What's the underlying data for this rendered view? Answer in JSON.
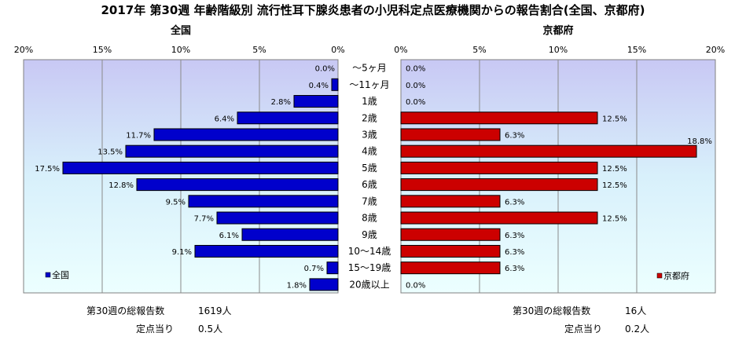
{
  "title": "2017年 第30週 年齢階級別 流行性耳下腺炎患者の小児科定点医療機関からの報告割合(全国、京都府)",
  "colors": {
    "national": "#0000cc",
    "kyoto": "#cc0000",
    "bar_stroke": "#000000"
  },
  "chart_data": [
    {
      "type": "bar",
      "orientation": "horizontal",
      "direction": "right-to-left",
      "title": "全国",
      "legend": "全国",
      "legend_position": "bottom-left",
      "xlim": [
        0,
        20
      ],
      "xticks": [
        "20%",
        "15%",
        "10%",
        "5%",
        "0%"
      ],
      "categories": [
        "～5ヶ月",
        "～11ヶ月",
        "1歳",
        "2歳",
        "3歳",
        "4歳",
        "5歳",
        "6歳",
        "7歳",
        "8歳",
        "9歳",
        "10～14歳",
        "15～19歳",
        "20歳以上"
      ],
      "values": [
        0.0,
        0.4,
        2.8,
        6.4,
        11.7,
        13.5,
        17.5,
        12.8,
        9.5,
        7.7,
        6.1,
        9.1,
        0.7,
        1.8
      ],
      "labels": [
        "0.0%",
        "0.4%",
        "2.8%",
        "6.4%",
        "11.7%",
        "13.5%",
        "17.5%",
        "12.8%",
        "9.5%",
        "7.7%",
        "6.1%",
        "9.1%",
        "0.7%",
        "1.8%"
      ]
    },
    {
      "type": "bar",
      "orientation": "horizontal",
      "direction": "left-to-right",
      "title": "京都府",
      "legend": "京都府",
      "legend_position": "bottom-right",
      "xlim": [
        0,
        20
      ],
      "xticks": [
        "0%",
        "5%",
        "10%",
        "15%",
        "20%"
      ],
      "categories": [
        "～5ヶ月",
        "～11ヶ月",
        "1歳",
        "2歳",
        "3歳",
        "4歳",
        "5歳",
        "6歳",
        "7歳",
        "8歳",
        "9歳",
        "10～14歳",
        "15～19歳",
        "20歳以上"
      ],
      "values": [
        0.0,
        0.0,
        0.0,
        12.5,
        6.3,
        18.8,
        12.5,
        12.5,
        6.3,
        12.5,
        6.3,
        6.3,
        6.3,
        0.0
      ],
      "labels": [
        "0.0%",
        "0.0%",
        "0.0%",
        "12.5%",
        "6.3%",
        "18.8%",
        "12.5%",
        "12.5%",
        "6.3%",
        "12.5%",
        "6.3%",
        "6.3%",
        "6.3%",
        "0.0%"
      ]
    }
  ],
  "footer": {
    "national_total_label": "第30週の総報告数",
    "national_total": "1619人",
    "national_per_label": "定点当り",
    "national_per": "0.5人",
    "kyoto_total_label": "第30週の総報告数",
    "kyoto_total": "16人",
    "kyoto_per_label": "定点当り",
    "kyoto_per": "0.2人"
  }
}
